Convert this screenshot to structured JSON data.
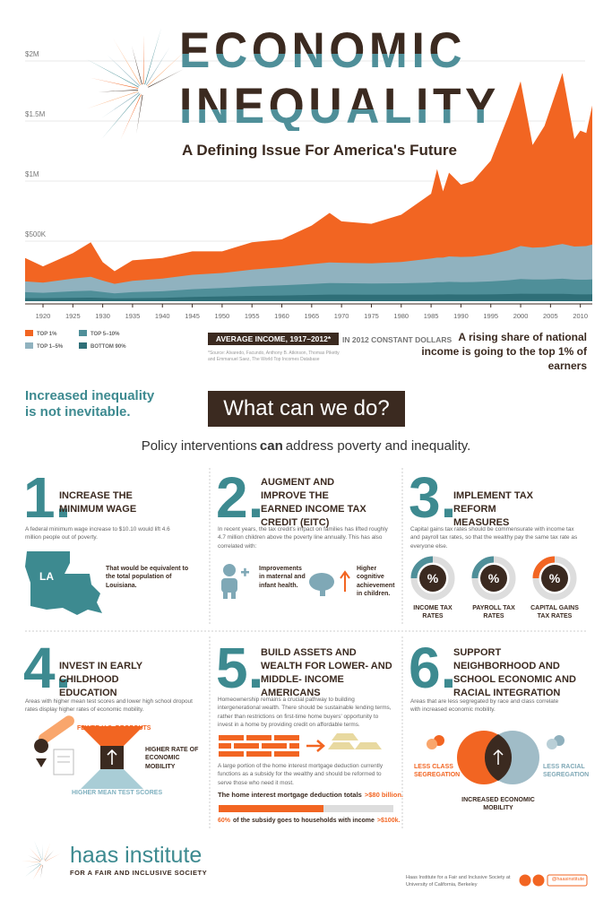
{
  "header": {
    "title_line1": "ECONOMIC",
    "title_line2": "INEQUALITY",
    "subtitle": "A Defining Issue For America's Future"
  },
  "chart_data": {
    "type": "area",
    "stacked": true,
    "title": "AVERAGE INCOME, 1917–2012*",
    "subtitle": "IN 2012 CONSTANT DOLLARS",
    "source": "*Source: Alvaredo, Facundo, Anthony B. Atkinson, Thomas Piketty and Emmanuel Saez, The World Top Incomes Database",
    "annotation": "A rising share of national income is going to the top 1% of earners",
    "x": [
      1917,
      1920,
      1925,
      1928,
      1930,
      1932,
      1935,
      1940,
      1945,
      1950,
      1955,
      1960,
      1965,
      1968,
      1970,
      1975,
      1980,
      1985,
      1986,
      1987,
      1988,
      1990,
      1992,
      1995,
      1998,
      2000,
      2002,
      2004,
      2007,
      2009,
      2010,
      2011,
      2012
    ],
    "xlim": [
      1917,
      2012
    ],
    "xticks": [
      1920,
      1925,
      1930,
      1935,
      1940,
      1945,
      1950,
      1955,
      1960,
      1965,
      1970,
      1975,
      1980,
      1985,
      1990,
      1995,
      2000,
      2005,
      2010
    ],
    "ylim": [
      0,
      2000000
    ],
    "yticks": [
      {
        "value": 500000,
        "label": "$500K"
      },
      {
        "value": 1000000,
        "label": "$1M"
      },
      {
        "value": 1500000,
        "label": "$1.5M"
      },
      {
        "value": 2000000,
        "label": "$2M"
      }
    ],
    "grid": true,
    "series": [
      {
        "name": "BOTTOM 90%",
        "color": "#2f6f78",
        "values": [
          25000,
          25000,
          28000,
          30000,
          27000,
          23000,
          25000,
          28000,
          35000,
          40000,
          45000,
          48000,
          52000,
          55000,
          55000,
          54000,
          54000,
          55000,
          56000,
          56000,
          57000,
          56000,
          56000,
          57000,
          60000,
          63000,
          61000,
          61000,
          62000,
          58000,
          57000,
          57000,
          58000
        ]
      },
      {
        "name": "TOP 5–10%",
        "color": "#4f8f99",
        "values": [
          50000,
          45000,
          55000,
          58000,
          50000,
          42000,
          50000,
          55000,
          65000,
          70000,
          78000,
          85000,
          92000,
          96000,
          95000,
          93000,
          95000,
          100000,
          102000,
          102000,
          104000,
          103000,
          104000,
          108000,
          115000,
          122000,
          120000,
          120000,
          125000,
          122000,
          122000,
          122000,
          124000
        ]
      },
      {
        "name": "TOP 1–5%",
        "color": "#90b2bf",
        "values": [
          90000,
          85000,
          105000,
          115000,
          95000,
          80000,
          95000,
          105000,
          120000,
          125000,
          140000,
          150000,
          165000,
          172000,
          170000,
          168000,
          178000,
          200000,
          205000,
          205000,
          212000,
          210000,
          212000,
          225000,
          250000,
          275000,
          265000,
          270000,
          290000,
          275000,
          278000,
          280000,
          290000
        ]
      },
      {
        "name": "TOP 1%",
        "color": "#f26522",
        "values": [
          195000,
          135000,
          212000,
          287000,
          153000,
          105000,
          170000,
          172000,
          195000,
          180000,
          227000,
          232000,
          321000,
          412000,
          345000,
          330000,
          393000,
          540000,
          737000,
          552000,
          697000,
          601000,
          628000,
          780000,
          1125000,
          1370000,
          854000,
          1009000,
          1423000,
          895000,
          963000,
          941000,
          1158000
        ]
      }
    ]
  },
  "intro": {
    "tagline": "Increased inequality is not inevitable.",
    "banner": "What can we do?",
    "lead_pre": "Policy interventions",
    "lead_bold": "can",
    "lead_post": "address poverty and inequality."
  },
  "sections": [
    {
      "number": "1.",
      "heading": "INCREASE THE MINIMUM WAGE",
      "body": "A federal minimum wage increase to $10.10 would lift 4.6 million people out of poverty.",
      "map_label": "LA",
      "callout": "That would be equivalent to the total population of Louisiana."
    },
    {
      "number": "2.",
      "heading": "AUGMENT AND IMPROVE THE EARNED INCOME TAX CREDIT (EITC)",
      "body": "In recent years, the tax credit's impact on families has lifted roughly 4.7 million children above the poverty line annually. This has also correlated with:",
      "items": [
        "Improvements in maternal and infant health.",
        "Higher cognitive achievement in children."
      ]
    },
    {
      "number": "3.",
      "heading": "IMPLEMENT TAX REFORM MEASURES",
      "body": "Capital gains tax rates should be commensurate with income tax and payroll tax rates, so that the wealthy pay the same tax rate as everyone else.",
      "gauge_symbol": "%",
      "gauges": [
        "INCOME TAX RATES",
        "PAYROLL TAX RATES",
        "CAPITAL GAINS TAX RATES"
      ]
    },
    {
      "number": "4.",
      "heading": "INVEST IN EARLY CHILDHOOD EDUCATION",
      "body": "Areas with higher mean test scores and lower high school dropout rates display higher rates of economic mobility.",
      "labels": [
        "FEWER H.S. DROPOUTS",
        "HIGHER RATE OF ECONOMIC MOBILITY",
        "HIGHER MEAN TEST SCORES"
      ]
    },
    {
      "number": "5.",
      "heading": "BUILD ASSETS AND WEALTH FOR LOWER- AND MIDDLE- INCOME AMERICANS",
      "body": "Homeownership remains a crucial pathway to building intergenerational wealth. There should be sustainable lending terms, rather than restrictions on first-time home buyers' opportunity to invest in a home by providing credit on affordable terms.",
      "body2": "A large portion of the home interest mortgage deduction currently functions as a subsidy for the wealthy and should be reformed to serve those who need it most.",
      "stat1_text": "The home interest mortgage deduction totals",
      "stat1_highlight": ">$80 billion.",
      "stat2_value": 60,
      "stat2_value_label": "60%",
      "stat2_text": "of the subsidy goes to households with income",
      "stat2_highlight": ">$100k."
    },
    {
      "number": "6.",
      "heading": "SUPPORT NEIGHBORHOOD AND SCHOOL ECONOMIC AND RACIAL INTEGRATION",
      "body": "Areas that are less segregated by race and class correlate with increased economic mobility.",
      "labels": [
        "LESS CLASS SEGREGATION",
        "LESS RACIAL SEGREGATION",
        "INCREASED ECONOMIC MOBILITY"
      ]
    }
  ],
  "footer": {
    "logo_name": "haas institute",
    "logo_tagline": "FOR A FAIR AND INCLUSIVE SOCIETY",
    "credit": "Haas Institute for a Fair and Inclusive Society at University of California, Berkeley",
    "handle": "@haasinstitute"
  }
}
